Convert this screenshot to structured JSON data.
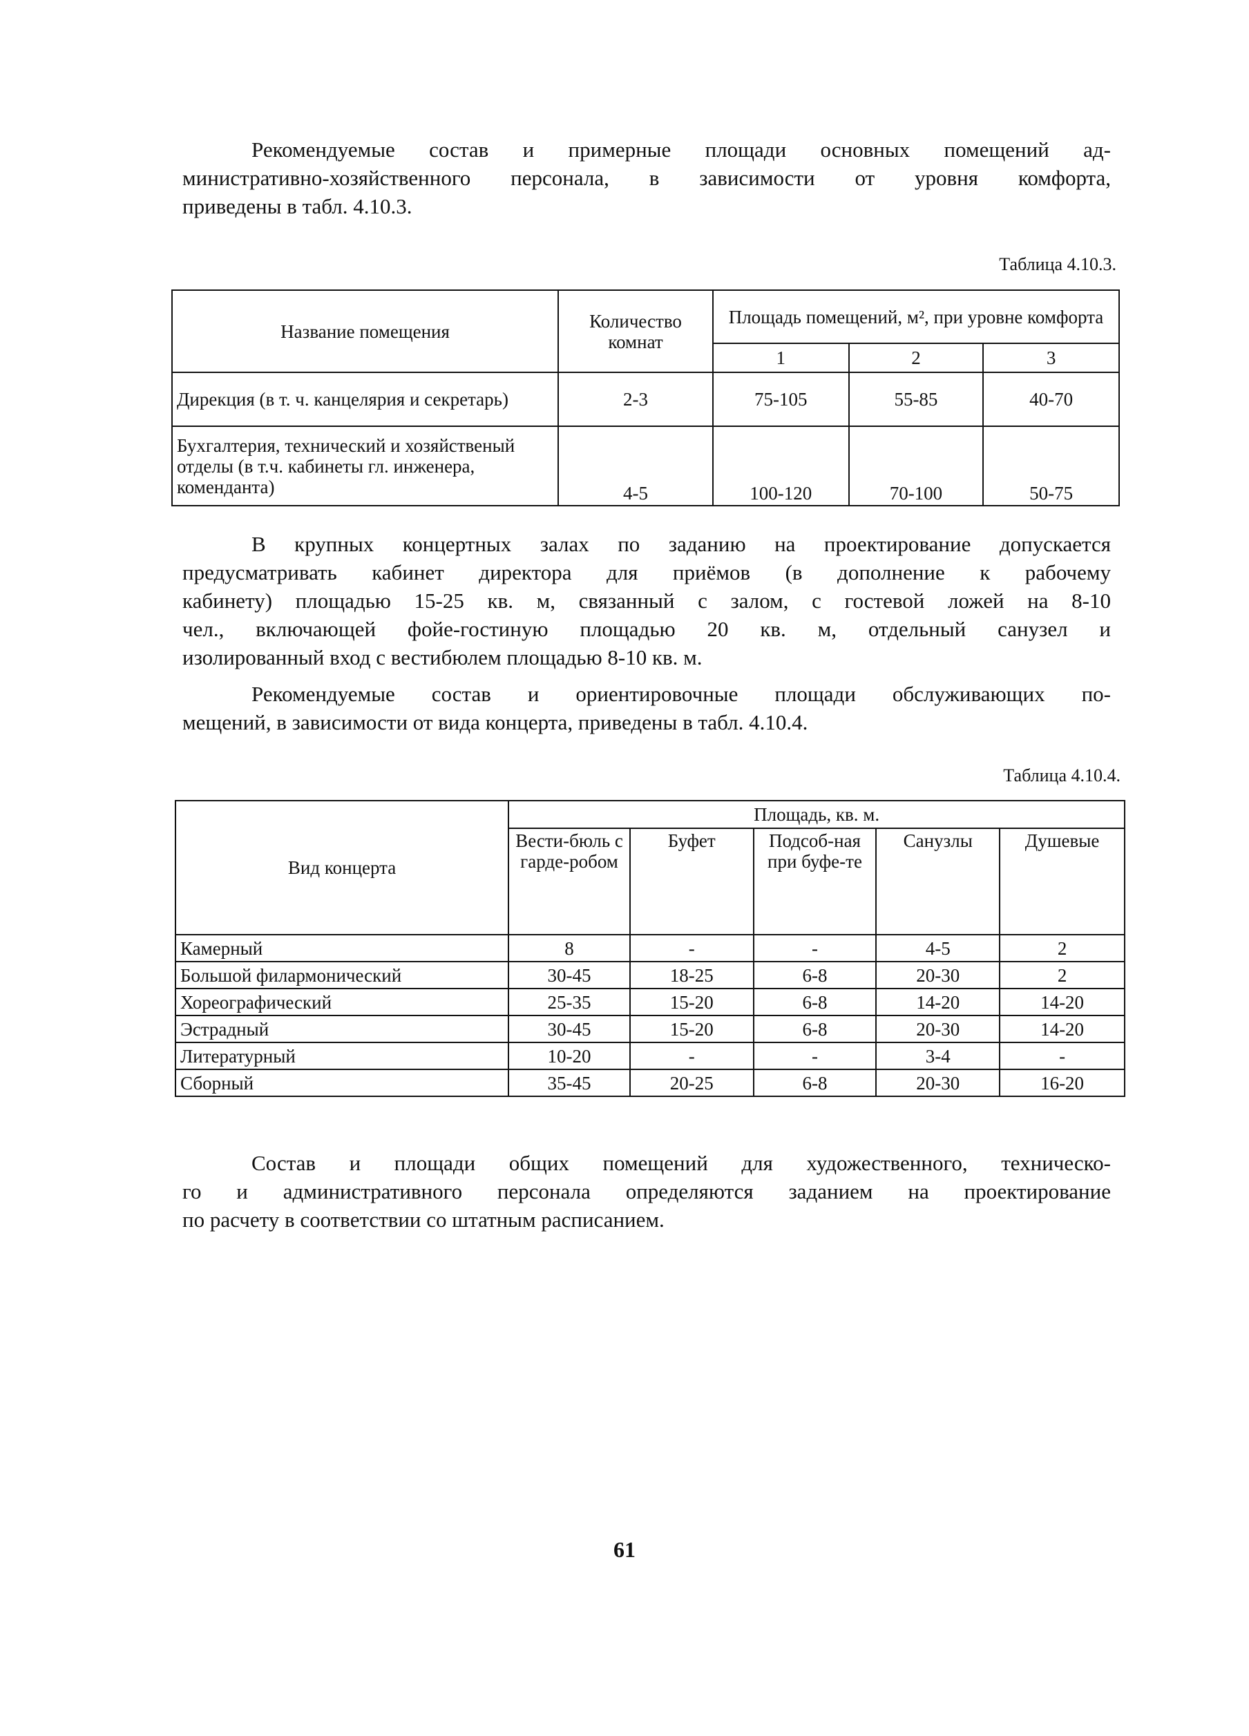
{
  "para1": [
    "Рекомендуемые состав и примерные площади основных помещений ад-",
    "министративно-хозяйственного персонала, в зависимости от уровня комфорта,",
    "приведены в табл. 4.10.3."
  ],
  "table1": {
    "label": "Таблица 4.10.3.",
    "headers": {
      "name": "Название помещения",
      "count": "Количество комнат",
      "area": "Площадь помещений, м², при уровне комфорта",
      "levels": [
        "1",
        "2",
        "3"
      ]
    },
    "rows": [
      {
        "name": "Дирекция (в т. ч. канцелярия и секретарь)",
        "count": "2-3",
        "values": [
          "75-105",
          "55-85",
          "40-70"
        ]
      },
      {
        "name": "Бухгалтерия, технический и хозяйственый отделы (в т.ч. кабинеты гл. инженера, коменданта)",
        "count": "4-5",
        "values": [
          "100-120",
          "70-100",
          "50-75"
        ]
      }
    ]
  },
  "para2": [
    "В крупных концертных залах по заданию на проектирование допускается",
    "предусматривать  кабинет директора для приёмов  (в дополнение к рабочему",
    "кабинету) площадью 15-25 кв. м, связанный с залом, с гостевой ложей на 8-10",
    "чел., включающей фойе-гостиную площадью 20 кв. м, отдельный санузел и",
    "изолированный вход с вестибюлем площадью 8-10 кв. м."
  ],
  "para3": [
    "Рекомендуемые состав и ориентировочные площади обслуживающих по-",
    "мещений, в зависимости от вида концерта, приведены в табл. 4.10.4."
  ],
  "table2": {
    "label": "Таблица 4.10.4.",
    "headers": {
      "type": "Вид концерта",
      "area": "Площадь, кв. м.",
      "columns": [
        "Вести-бюль с гарде-робом",
        "Буфет",
        "Подсоб-ная при буфе-те",
        "Санузлы",
        "Душевые"
      ]
    },
    "rows": [
      {
        "name": "Камерный",
        "values": [
          "8",
          "-",
          "-",
          "4-5",
          "2"
        ]
      },
      {
        "name": "Большой филармонический",
        "values": [
          "30-45",
          "18-25",
          "6-8",
          "20-30",
          "2"
        ]
      },
      {
        "name": "Хореографический",
        "values": [
          "25-35",
          "15-20",
          "6-8",
          "14-20",
          "14-20"
        ]
      },
      {
        "name": "Эстрадный",
        "values": [
          "30-45",
          "15-20",
          "6-8",
          "20-30",
          "14-20"
        ]
      },
      {
        "name": "Литературный",
        "values": [
          "10-20",
          "-",
          "-",
          "3-4",
          "-"
        ]
      },
      {
        "name": "Сборный",
        "values": [
          "35-45",
          "20-25",
          "6-8",
          "20-30",
          "16-20"
        ]
      }
    ]
  },
  "para4": [
    "Состав и  площади общих помещений для художественного, техническо-",
    "го и административного персонала определяются заданием на проектирование",
    "по расчету в соответствии со штатным расписанием."
  ],
  "page_number": "61"
}
